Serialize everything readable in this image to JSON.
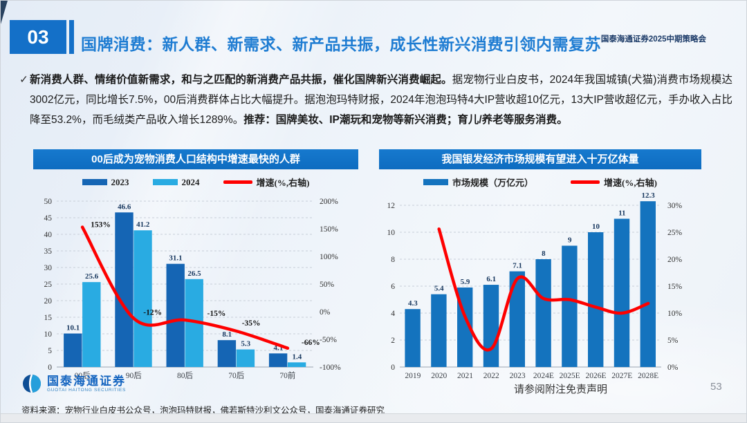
{
  "slide": {
    "section_number": "03",
    "title": "国牌消费：新人群、新需求、新产品共振，成长性新兴消费引领内需复苏",
    "event_label": "国泰海通证券2025中期策略会",
    "page_number": "53",
    "disclaimer": "请参阅附注免责声明",
    "source": "资料来源：宠物行业白皮书公众号，泡泡玛特财报，佛若斯特沙利文公众号，国泰海通证券研究",
    "logo": {
      "name": "国泰海通证券",
      "name_en": "GUOTAI HAITONG SECURITIES"
    }
  },
  "paragraph": {
    "check": "✓",
    "bold_lead": "新消费人群、情绪价值新需求，和与之匹配的新消费产品共振，催化国牌新兴消费崛起。",
    "body": "据宠物行业白皮书，2024年我国城镇(犬猫)消费市场规模达3002亿元，同比增长7.5%，00后消费群体占比大幅提升。据泡泡玛特财报，2024年泡泡玛特4大IP营收超10亿元，13大IP营收超亿元，手办收入占比降至53.2%，而毛绒类产品收入增长1289%。",
    "bold_tail": "推荐：国牌美妆、IP潮玩和宠物等新兴消费；育儿/养老等服务消费。"
  },
  "colors": {
    "banner_blue": "#0F72C6",
    "title_blue": "#1E7CD2",
    "bar_dark_blue": "#1565B4",
    "bar_light_blue": "#29ABE2",
    "line_red": "#FE0000"
  },
  "chart_data": [
    {
      "type": "bar",
      "title": "00后成为宠物消费人口结构中增速最快的人群",
      "categories": [
        "00后",
        "90后",
        "80后",
        "70后",
        "70前"
      ],
      "series": [
        {
          "name": "2023",
          "type": "bar",
          "color": "#1565B4",
          "values": [
            10.1,
            46.6,
            31.1,
            8.1,
            4.1
          ]
        },
        {
          "name": "2024",
          "type": "bar",
          "color": "#29ABE2",
          "values": [
            25.6,
            41.2,
            26.5,
            5.3,
            1.4
          ]
        },
        {
          "name": "增速(%,右轴)",
          "type": "line",
          "color": "#FE0000",
          "axis": "right",
          "values": [
            153,
            -12,
            -15,
            -35,
            -66
          ]
        }
      ],
      "line_labels": [
        "153%",
        "-12%",
        "-15%",
        "-35%",
        "-66%"
      ],
      "left_axis": {
        "min": 0,
        "max": 50,
        "step": 5
      },
      "right_axis": {
        "min": -100,
        "max": 200,
        "step": 50,
        "suffix": "%"
      },
      "grid": "dashed-horizontal",
      "legend_position": "top"
    },
    {
      "type": "bar",
      "title": "我国银发经济市场规模有望进入十万亿体量",
      "categories": [
        "2019",
        "2020",
        "2021",
        "2022",
        "2023",
        "2024E",
        "2025E",
        "2026E",
        "2027E",
        "2028E"
      ],
      "series": [
        {
          "name": "市场规模（万亿元）",
          "type": "bar",
          "color": "#1473BE",
          "values": [
            4.3,
            5.4,
            5.9,
            6.1,
            7.1,
            8,
            9,
            10,
            11,
            12.3
          ]
        },
        {
          "name": "增速(%,右轴)",
          "type": "line",
          "color": "#FE0000",
          "axis": "right",
          "values": [
            null,
            25.6,
            9.3,
            3.4,
            16.4,
            12.7,
            12.5,
            11.1,
            10,
            11.8
          ]
        }
      ],
      "left_axis": {
        "min": 0,
        "max": 12,
        "step": 2
      },
      "right_axis": {
        "min": 0,
        "max": 30,
        "step": 5,
        "suffix": "%"
      },
      "grid": "dashed-horizontal",
      "legend_position": "top"
    }
  ]
}
